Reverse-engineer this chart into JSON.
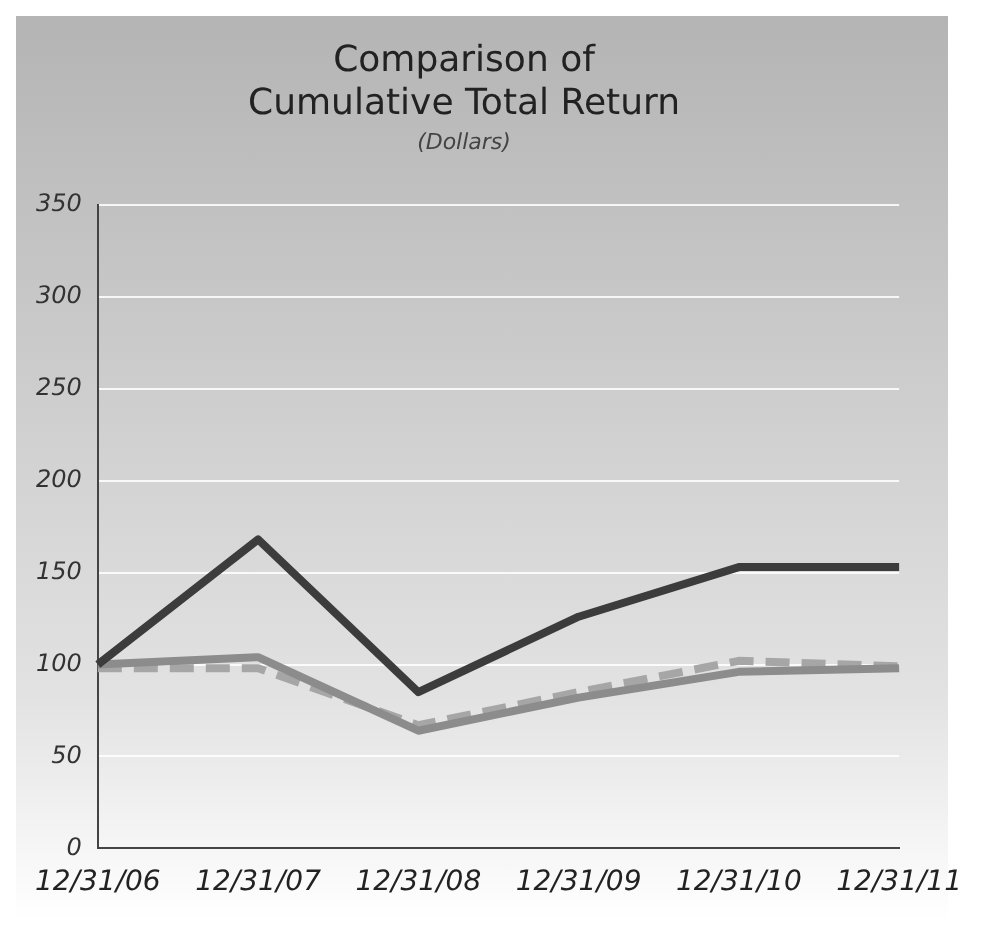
{
  "chart_data": {
    "type": "line",
    "title": [
      "Comparison of",
      "Cumulative Total Return"
    ],
    "subtitle": "(Dollars)",
    "categories": [
      "12/31/06",
      "12/31/07",
      "12/31/08",
      "12/31/09",
      "12/31/10",
      "12/31/11"
    ],
    "series": [
      {
        "color": "#3c3c3c",
        "values": [
          100,
          168,
          85,
          126,
          153,
          153
        ],
        "line_style": "solid"
      },
      {
        "color": "#8c8c8c",
        "values": [
          100,
          104,
          64,
          82,
          96,
          98
        ],
        "line_style": "solid"
      },
      {
        "color": "#a6a6a6",
        "values": [
          98,
          98,
          67,
          85,
          102,
          99
        ],
        "line_style": "dashed"
      }
    ],
    "ylim": [
      0,
      350
    ],
    "yticks": [
      0,
      50,
      100,
      150,
      200,
      250,
      300,
      350
    ],
    "grid": "y",
    "legend": false,
    "marker": "none"
  }
}
